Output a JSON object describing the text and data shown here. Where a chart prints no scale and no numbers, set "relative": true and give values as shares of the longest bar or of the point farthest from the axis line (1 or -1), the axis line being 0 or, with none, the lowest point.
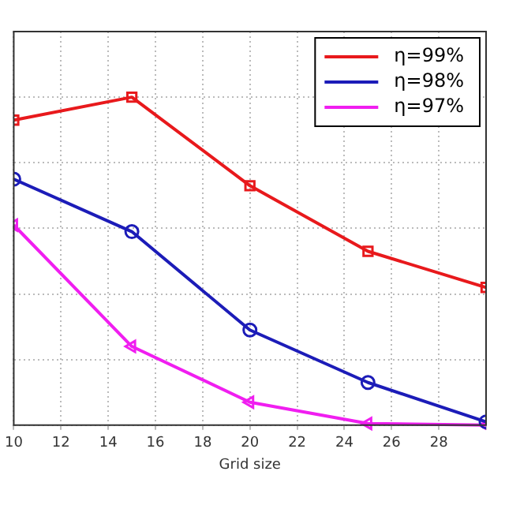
{
  "chart_data": {
    "type": "line",
    "xlabel": "Grid size",
    "relative": true,
    "x": [
      10,
      15,
      20,
      25,
      30
    ],
    "xlim": [
      10,
      30
    ],
    "xticks": [
      10,
      12,
      14,
      16,
      18,
      20,
      22,
      24,
      26,
      28,
      {
        "value": 30,
        "label": null
      }
    ],
    "grid": true,
    "legend": "top right",
    "series": [
      {
        "name": "η=99%",
        "color": "#e8191c",
        "marker": "square",
        "values": [
          0.93,
          1,
          0.73,
          0.53,
          0.42
        ]
      },
      {
        "name": "η=98%",
        "color": "#1c1cb8",
        "marker": "circle",
        "values": [
          0.75,
          0.59,
          0.29,
          0.13,
          0.01
        ]
      },
      {
        "name": "η=97%",
        "color": "#f01ef0",
        "marker": "triangle",
        "values": [
          0.61,
          0.24,
          0.07,
          0.005,
          0
        ]
      }
    ]
  }
}
